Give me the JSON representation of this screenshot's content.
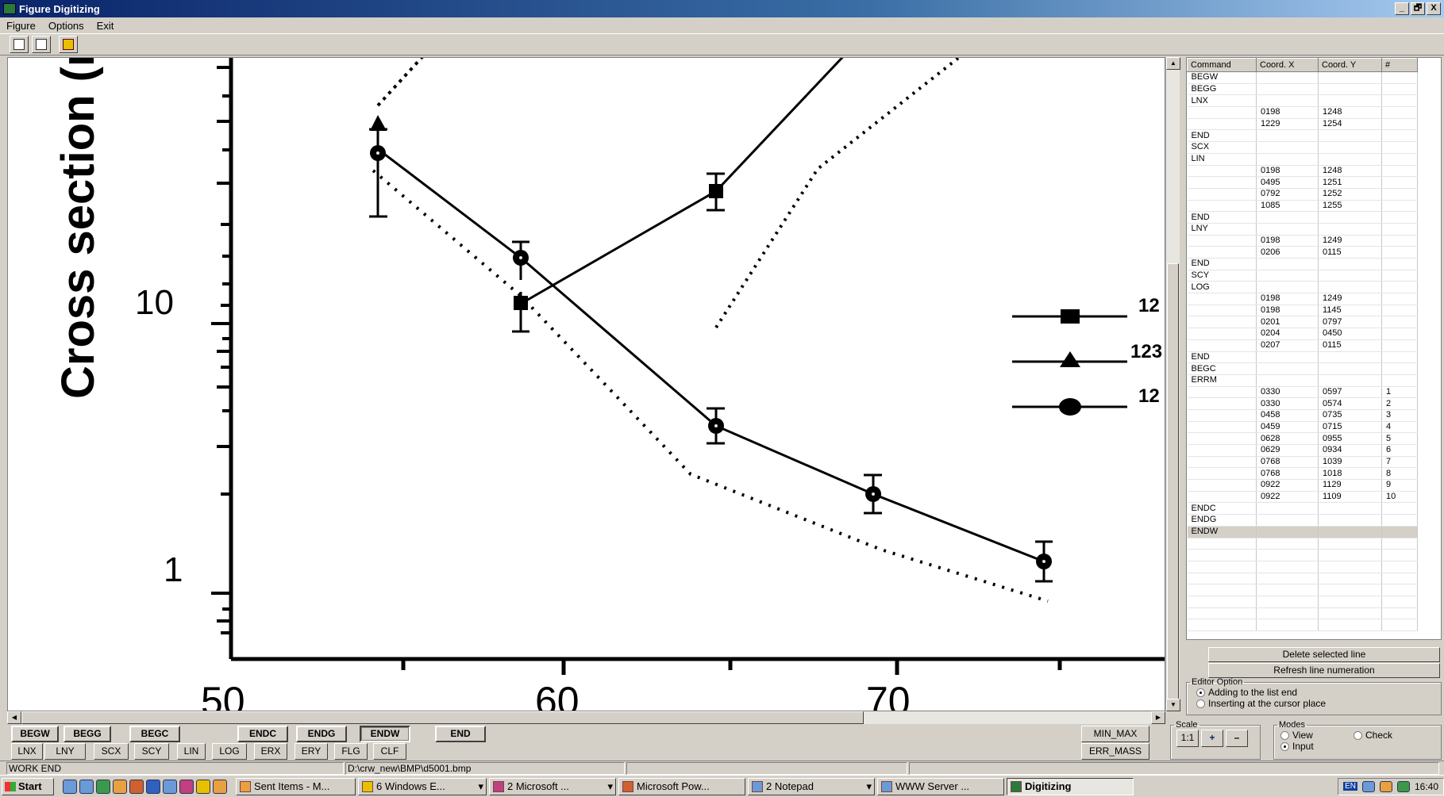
{
  "window": {
    "title": "Figure Digitizing",
    "controls": [
      "_",
      "🗗",
      "X"
    ]
  },
  "menu": [
    "Figure",
    "Options",
    "Exit"
  ],
  "toolbar_icons": [
    "copy-icon",
    "paste-icon",
    "exit-door-icon"
  ],
  "plot": {
    "ylabel": "Cross section (mb)",
    "ytick_labels": [
      "10",
      "1"
    ],
    "xtick_labels": [
      "50",
      "60",
      "70"
    ],
    "legend_labels": [
      "12",
      "123",
      "12"
    ]
  },
  "table": {
    "headers": [
      "Command",
      "Coord. X",
      "Coord. Y",
      "#"
    ],
    "rows": [
      [
        "BEGW",
        "",
        "",
        ""
      ],
      [
        "BEGG",
        "",
        "",
        ""
      ],
      [
        "LNX",
        "",
        "",
        ""
      ],
      [
        "",
        "0198",
        "1248",
        ""
      ],
      [
        "",
        "1229",
        "1254",
        ""
      ],
      [
        "END",
        "",
        "",
        ""
      ],
      [
        "SCX",
        "",
        "",
        ""
      ],
      [
        "LIN",
        "",
        "",
        ""
      ],
      [
        "",
        "0198",
        "1248",
        ""
      ],
      [
        "",
        "0495",
        "1251",
        ""
      ],
      [
        "",
        "0792",
        "1252",
        ""
      ],
      [
        "",
        "1085",
        "1255",
        ""
      ],
      [
        "END",
        "",
        "",
        ""
      ],
      [
        "LNY",
        "",
        "",
        ""
      ],
      [
        "",
        "0198",
        "1249",
        ""
      ],
      [
        "",
        "0206",
        "0115",
        ""
      ],
      [
        "END",
        "",
        "",
        ""
      ],
      [
        "SCY",
        "",
        "",
        ""
      ],
      [
        "LOG",
        "",
        "",
        ""
      ],
      [
        "",
        "0198",
        "1249",
        ""
      ],
      [
        "",
        "0198",
        "1145",
        ""
      ],
      [
        "",
        "0201",
        "0797",
        ""
      ],
      [
        "",
        "0204",
        "0450",
        ""
      ],
      [
        "",
        "0207",
        "0115",
        ""
      ],
      [
        "END",
        "",
        "",
        ""
      ],
      [
        "BEGC",
        "",
        "",
        ""
      ],
      [
        "ERRM",
        "",
        "",
        ""
      ],
      [
        "",
        "0330",
        "0597",
        "1"
      ],
      [
        "",
        "0330",
        "0574",
        "2"
      ],
      [
        "",
        "0458",
        "0735",
        "3"
      ],
      [
        "",
        "0459",
        "0715",
        "4"
      ],
      [
        "",
        "0628",
        "0955",
        "5"
      ],
      [
        "",
        "0629",
        "0934",
        "6"
      ],
      [
        "",
        "0768",
        "1039",
        "7"
      ],
      [
        "",
        "0768",
        "1018",
        "8"
      ],
      [
        "",
        "0922",
        "1129",
        "9"
      ],
      [
        "",
        "0922",
        "1109",
        "10"
      ],
      [
        "ENDC",
        "",
        "",
        ""
      ],
      [
        "ENDG",
        "",
        "",
        ""
      ],
      [
        "ENDW",
        "",
        "",
        ""
      ]
    ],
    "selected_row": 39
  },
  "panel": {
    "delete_label": "Delete selected line",
    "refresh_label": "Refresh line numeration",
    "editor_option_label": "Editor Option",
    "editor_options": [
      "Adding to the list end",
      "Inserting at the cursor place"
    ],
    "editor_selected": 0,
    "scale_label": "Scale",
    "scale_buttons": [
      "1:1",
      "+",
      "–"
    ],
    "modes_label": "Modes",
    "modes": [
      "View",
      "Check",
      "Input"
    ],
    "mode_selected": "Input"
  },
  "commands": {
    "row1": [
      "BEGW",
      "BEGG",
      "BEGC",
      "ENDC",
      "ENDG",
      "ENDW",
      "END"
    ],
    "row2": [
      "LNX",
      "LNY",
      "SCX",
      "SCY",
      "LIN",
      "LOG",
      "ERX",
      "ERY",
      "FLG",
      "CLF"
    ],
    "right": [
      "MIN_MAX",
      "ERR_MASS"
    ],
    "pressed": "ENDW"
  },
  "status": {
    "left": "WORK END",
    "path": "D:\\crw_new\\BMP\\d5001.bmp"
  },
  "taskbar": {
    "start": "Start",
    "tasks": [
      "Sent Items - M...",
      "6 Windows E...",
      "2 Microsoft ...",
      "Microsoft Pow...",
      "2 Notepad",
      "WWW Server ...",
      "Digitizing"
    ],
    "active": "Digitizing",
    "lang": "EN",
    "clock": "16:40"
  }
}
